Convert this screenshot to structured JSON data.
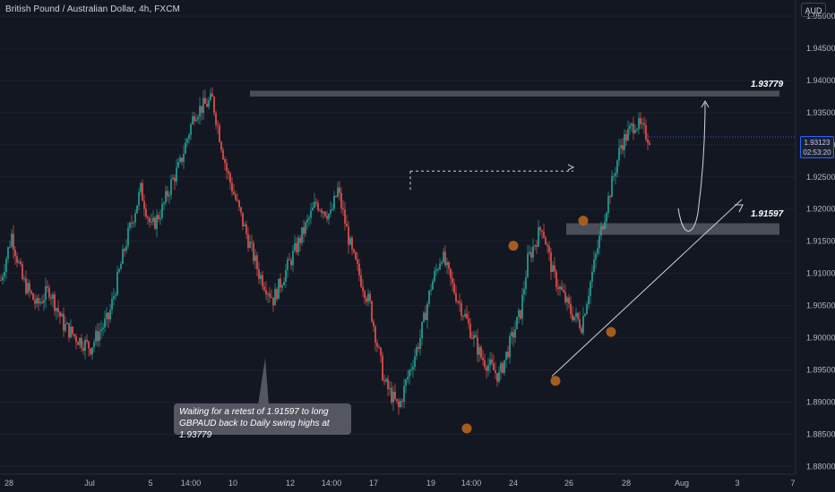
{
  "header": {
    "title": "British Pound / Australian Dollar, 4h, FXCM",
    "currency": "AUD"
  },
  "price_tag": {
    "price": "1.93123",
    "countdown": "02:53:20"
  },
  "annotation": {
    "text": "Waiting for a retest of 1.91597 to long GBPAUD back to Daily swing highs at 1.93779"
  },
  "levels": {
    "resistance": "1.93779",
    "support": "1.91597"
  },
  "colors": {
    "background": "#131722",
    "bull": "#26a69a",
    "bear": "#ef5350",
    "zone": "#787b86",
    "marker": "#b5651d",
    "accent": "#2962ff"
  },
  "chart_data": {
    "type": "candlestick",
    "symbol": "GBPAUD",
    "interval": "4h",
    "ylim": [
      1.8788,
      1.9525
    ],
    "y_ticks": [
      "1.95000",
      "1.94500",
      "1.94000",
      "1.93500",
      "1.93000",
      "1.92500",
      "1.92000",
      "1.91500",
      "1.91000",
      "1.90500",
      "1.90000",
      "1.89500",
      "1.89000",
      "1.88500",
      "1.88000"
    ],
    "x_ticks": [
      "28",
      "Jul",
      "5",
      "14:00",
      "10",
      "12",
      "14:00",
      "17",
      "19",
      "14:00",
      "24",
      "26",
      "28",
      "Aug",
      "3",
      "7"
    ],
    "current_price": 1.93123,
    "zones": [
      {
        "label": "1.93779",
        "low": 1.9375,
        "high": 1.9384
      },
      {
        "label": "1.91597",
        "low": 1.916,
        "high": 1.9178
      }
    ],
    "swing_points": [
      1.8859,
      1.9143,
      1.8933,
      1.9182,
      1.9009
    ]
  }
}
